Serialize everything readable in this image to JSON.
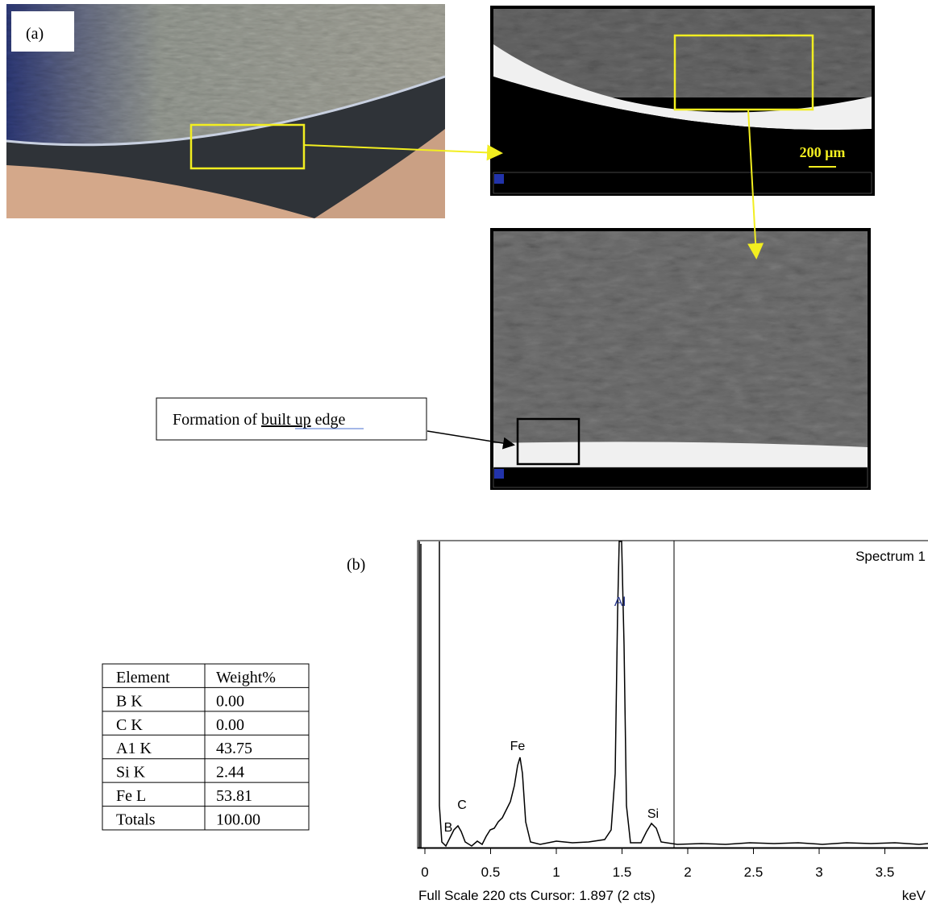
{
  "panel_a": {
    "label": "(a)",
    "scale_bar": "200 µm",
    "annotation_parts": [
      "Formation of",
      "built up",
      "edge"
    ]
  },
  "panel_b": {
    "label": "(b)",
    "table": {
      "header": [
        "Element",
        "Weight%"
      ],
      "rows": [
        [
          "B K",
          "0.00"
        ],
        [
          "C K",
          "0.00"
        ],
        [
          "A1 K",
          "43.75"
        ],
        [
          "Si K",
          "2.44"
        ],
        [
          "Fe L",
          "53.81"
        ],
        [
          "Totals",
          "100.00"
        ]
      ]
    },
    "spectrum": {
      "title": "Spectrum 1",
      "peaks": [
        "B",
        "C",
        "Fe",
        "Al",
        "Si"
      ],
      "xticks": [
        "0",
        "0.5",
        "1",
        "1.5",
        "2",
        "2.5",
        "3",
        "3.5"
      ],
      "x_unit": "keV",
      "footer": "Full Scale 220 cts Cursor: 1.897  (2 cts)"
    }
  }
}
